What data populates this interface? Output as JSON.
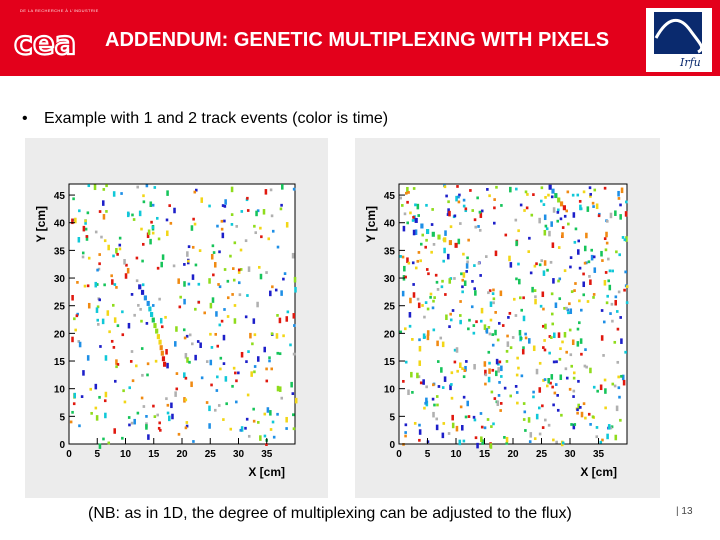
{
  "header": {
    "tagline": "DE LA RECHERCHE À L’INDUSTRIE",
    "logo_text": "cea",
    "title": "ADDENDUM: GENETIC MULTIPLEXING WITH PIXELS",
    "lab_logo_text": "Irfu"
  },
  "bullet": "Example with 1 and 2 track events (color is time)",
  "note": "(NB: as in 1D, the degree of multiplexing can be adjusted to the flux)",
  "slide_number": "| 13",
  "colors": {
    "brand_red": "#e3001b",
    "panel_bg": "#ececec"
  },
  "chart_data": [
    {
      "type": "heatmap",
      "title": "",
      "xlabel": "X [cm]",
      "ylabel": "Y [cm]",
      "xlim": [
        0,
        40
      ],
      "ylim": [
        0,
        47
      ],
      "xticks": [
        0,
        5,
        10,
        15,
        20,
        25,
        30,
        35
      ],
      "yticks": [
        0,
        5,
        10,
        15,
        20,
        25,
        30,
        35,
        40,
        45
      ],
      "grid": false,
      "legend": "none",
      "noise_hits": 420,
      "tracks": [
        {
          "x": [
            12.5,
            13.0,
            13.5,
            14.0,
            14.3,
            14.6,
            14.9,
            15.2,
            15.5,
            15.8,
            16.1,
            16.3,
            16.5,
            16.7,
            16.9
          ],
          "y": [
            28.5,
            27.5,
            26.5,
            25.5,
            24.5,
            23.5,
            22.5,
            21.5,
            20.5,
            19.5,
            18.5,
            17.5,
            16.5,
            15.5,
            14.5
          ]
        }
      ]
    },
    {
      "type": "heatmap",
      "title": "",
      "xlabel": "X [cm]",
      "ylabel": "Y [cm]",
      "xlim": [
        0,
        40
      ],
      "ylim": [
        0,
        47
      ],
      "xticks": [
        0,
        5,
        10,
        15,
        20,
        25,
        30,
        35
      ],
      "yticks": [
        0,
        5,
        10,
        15,
        20,
        25,
        30,
        35,
        40,
        45
      ],
      "grid": false,
      "legend": "none",
      "noise_hits": 620,
      "tracks": [
        {
          "x": [
            3,
            4,
            5,
            6,
            7,
            8,
            9,
            10
          ],
          "y": [
            40.5,
            39.5,
            38.5,
            38.0,
            37.5,
            37.0,
            36.5,
            36.0
          ]
        },
        {
          "x": [
            26.5,
            27.0,
            27.5,
            28.0,
            28.5,
            29.0
          ],
          "y": [
            46.5,
            45.8,
            45.0,
            44.2,
            43.5,
            42.8
          ]
        }
      ]
    }
  ]
}
